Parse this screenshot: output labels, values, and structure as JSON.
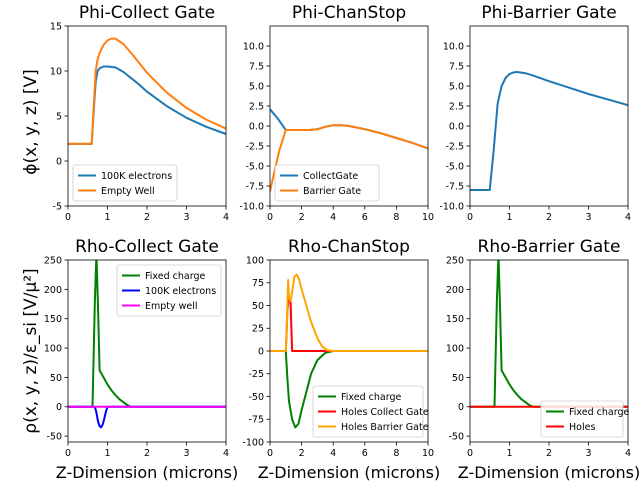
{
  "ylabels": {
    "top": "ϕ(x, y, z) [V]",
    "bottom": "ρ(x, y, z)/ε_si [V/μ²]"
  },
  "chart_data": [
    {
      "type": "line",
      "title": "Phi-Collect Gate",
      "xlabel": "",
      "xlim": [
        0,
        4
      ],
      "ylim": [
        -5,
        15
      ],
      "xticks": [
        0,
        1,
        2,
        3,
        4
      ],
      "yticks": [
        -5,
        0,
        5,
        10,
        15
      ],
      "legend": "lower-left",
      "series": [
        {
          "name": "100K electrons",
          "color": "#1f77b4",
          "x": [
            0,
            0.5,
            0.6,
            0.65,
            0.7,
            0.75,
            0.8,
            0.9,
            1.0,
            1.2,
            1.4,
            1.6,
            1.8,
            2.0,
            2.5,
            3.0,
            3.5,
            4.0
          ],
          "y": [
            1.9,
            1.9,
            1.9,
            5.5,
            8.8,
            10.0,
            10.3,
            10.5,
            10.5,
            10.4,
            9.9,
            9.2,
            8.5,
            7.7,
            6.1,
            4.8,
            3.8,
            3.0
          ]
        },
        {
          "name": "Empty Well",
          "color": "#ff7f0e",
          "x": [
            0,
            0.5,
            0.6,
            0.65,
            0.7,
            0.75,
            0.8,
            0.9,
            1.0,
            1.1,
            1.2,
            1.4,
            1.6,
            1.8,
            2.0,
            2.5,
            3.0,
            3.5,
            4.0
          ],
          "y": [
            1.9,
            1.9,
            1.9,
            6.0,
            10.0,
            11.3,
            12.0,
            12.9,
            13.4,
            13.6,
            13.6,
            13.0,
            12.0,
            10.9,
            9.8,
            7.6,
            5.9,
            4.6,
            3.6
          ]
        }
      ]
    },
    {
      "type": "line",
      "title": "Phi-ChanStop",
      "xlabel": "",
      "xlim": [
        0,
        10
      ],
      "ylim": [
        -10,
        12.5
      ],
      "xticks": [
        0,
        2,
        4,
        6,
        8,
        10
      ],
      "yticks": [
        -10.0,
        -7.5,
        -5.0,
        -2.5,
        0.0,
        2.5,
        5.0,
        7.5,
        10.0
      ],
      "legend": "lower-left",
      "series": [
        {
          "name": "CollectGate",
          "color": "#1f77b4",
          "x": [
            0,
            0.5,
            1.0,
            1.5,
            2.0,
            2.5,
            3.0,
            3.5,
            4.0,
            4.5,
            5.0,
            6.0,
            7.0,
            8.0,
            9.0,
            10.0
          ],
          "y": [
            2.1,
            0.9,
            -0.5,
            -0.5,
            -0.5,
            -0.5,
            -0.4,
            -0.1,
            0.1,
            0.1,
            0.0,
            -0.4,
            -0.9,
            -1.5,
            -2.1,
            -2.8
          ]
        },
        {
          "name": "Barrier Gate",
          "color": "#ff7f0e",
          "x": [
            0,
            0.3,
            0.6,
            1.0,
            1.5,
            2.0,
            2.5,
            3.0,
            3.5,
            4.0,
            4.5,
            5.0,
            6.0,
            7.0,
            8.0,
            9.0,
            10.0
          ],
          "y": [
            -8.2,
            -5.5,
            -3.0,
            -0.5,
            -0.5,
            -0.5,
            -0.5,
            -0.4,
            -0.1,
            0.1,
            0.1,
            0.0,
            -0.4,
            -0.9,
            -1.5,
            -2.1,
            -2.8
          ]
        }
      ]
    },
    {
      "type": "line",
      "title": "Phi-Barrier Gate",
      "xlabel": "",
      "xlim": [
        0,
        4
      ],
      "ylim": [
        -10,
        12.5
      ],
      "xticks": [
        0,
        1,
        2,
        3,
        4
      ],
      "yticks": [
        -10.0,
        -7.5,
        -5.0,
        -2.5,
        0.0,
        2.5,
        5.0,
        7.5,
        10.0
      ],
      "legend": "none",
      "series": [
        {
          "name": "",
          "color": "#1f77b4",
          "x": [
            0,
            0.5,
            0.6,
            0.7,
            0.8,
            0.9,
            1.0,
            1.1,
            1.2,
            1.4,
            1.6,
            2.0,
            2.5,
            3.0,
            3.5,
            4.0
          ],
          "y": [
            -8.0,
            -8.0,
            -3.0,
            2.8,
            5.0,
            6.0,
            6.5,
            6.7,
            6.75,
            6.6,
            6.3,
            5.6,
            4.8,
            4.0,
            3.3,
            2.6
          ]
        }
      ]
    },
    {
      "type": "line",
      "title": "Rho-Collect Gate",
      "xlabel": "Z-Dimension (microns)",
      "xlim": [
        0,
        4
      ],
      "ylim": [
        -60,
        250
      ],
      "xticks": [
        0,
        1,
        2,
        3,
        4
      ],
      "yticks": [
        -50,
        0,
        50,
        100,
        150,
        200,
        250
      ],
      "legend": "upper-right",
      "series": [
        {
          "name": "Fixed charge",
          "color": "#008000",
          "x": [
            0,
            0.6,
            0.62,
            0.68,
            0.72,
            0.76,
            0.8,
            0.9,
            1.0,
            1.1,
            1.2,
            1.3,
            1.4,
            1.5,
            1.6,
            2.0,
            4.0
          ],
          "y": [
            0,
            0,
            0,
            180,
            260,
            170,
            62,
            50,
            38,
            28,
            20,
            13,
            8,
            3,
            0,
            0,
            0
          ]
        },
        {
          "name": "100K electrons",
          "color": "#0000ff",
          "x": [
            0,
            0.68,
            0.72,
            0.76,
            0.8,
            0.84,
            0.88,
            0.92,
            0.96,
            1.0,
            4.0
          ],
          "y": [
            0,
            0,
            -10,
            -25,
            -33,
            -35,
            -30,
            -20,
            -8,
            0,
            0
          ]
        },
        {
          "name": "Empty well",
          "color": "#ff00ff",
          "x": [
            0,
            4
          ],
          "y": [
            0,
            0
          ]
        }
      ]
    },
    {
      "type": "line",
      "title": "Rho-ChanStop",
      "xlabel": "Z-Dimension (microns)",
      "xlim": [
        0,
        10
      ],
      "ylim": [
        -100,
        100
      ],
      "xticks": [
        0,
        2,
        4,
        6,
        8,
        10
      ],
      "yticks": [
        -100,
        -75,
        -50,
        -25,
        0,
        25,
        50,
        75,
        100
      ],
      "legend": "lower-right",
      "series": [
        {
          "name": "Fixed charge",
          "color": "#008000",
          "x": [
            0,
            1.0,
            1.1,
            1.2,
            1.4,
            1.6,
            1.8,
            2.0,
            2.3,
            2.6,
            3.0,
            3.5,
            4.0,
            10.0
          ],
          "y": [
            0,
            0,
            -30,
            -55,
            -75,
            -84,
            -80,
            -65,
            -45,
            -25,
            -10,
            -2,
            0,
            0
          ]
        },
        {
          "name": "Holes Collect Gate",
          "color": "#ff0000",
          "x": [
            0,
            1.0,
            1.05,
            1.1,
            1.2,
            1.3,
            1.4,
            4.0,
            10.0
          ],
          "y": [
            0,
            0,
            20,
            45,
            60,
            55,
            0,
            0,
            0
          ]
        },
        {
          "name": "Holes Barrier Gate",
          "color": "#ffa500",
          "x": [
            0,
            1.0,
            1.05,
            1.15,
            1.2,
            1.3,
            1.4,
            1.55,
            1.7,
            1.85,
            2.0,
            2.3,
            2.6,
            3.0,
            3.3,
            3.6,
            4.0,
            10.0
          ],
          "y": [
            0,
            0,
            20,
            78,
            60,
            55,
            65,
            82,
            84,
            78,
            68,
            50,
            32,
            14,
            5,
            1,
            0,
            0
          ]
        }
      ]
    },
    {
      "type": "line",
      "title": "Rho-Barrier Gate",
      "xlabel": "Z-Dimension (microns)",
      "xlim": [
        0,
        4
      ],
      "ylim": [
        -60,
        250
      ],
      "xticks": [
        0,
        1,
        2,
        3,
        4
      ],
      "yticks": [
        -50,
        0,
        50,
        100,
        150,
        200,
        250
      ],
      "legend": "lower-right",
      "series": [
        {
          "name": "Fixed charge",
          "color": "#008000",
          "x": [
            0,
            0.6,
            0.62,
            0.68,
            0.72,
            0.76,
            0.8,
            0.9,
            1.0,
            1.1,
            1.2,
            1.3,
            1.4,
            1.5,
            1.6,
            2.0,
            4.0
          ],
          "y": [
            0,
            0,
            0,
            180,
            260,
            170,
            62,
            50,
            38,
            28,
            20,
            13,
            8,
            3,
            0,
            0,
            0
          ]
        },
        {
          "name": "Holes",
          "color": "#ff0000",
          "x": [
            0,
            4
          ],
          "y": [
            0,
            0
          ]
        }
      ]
    }
  ]
}
